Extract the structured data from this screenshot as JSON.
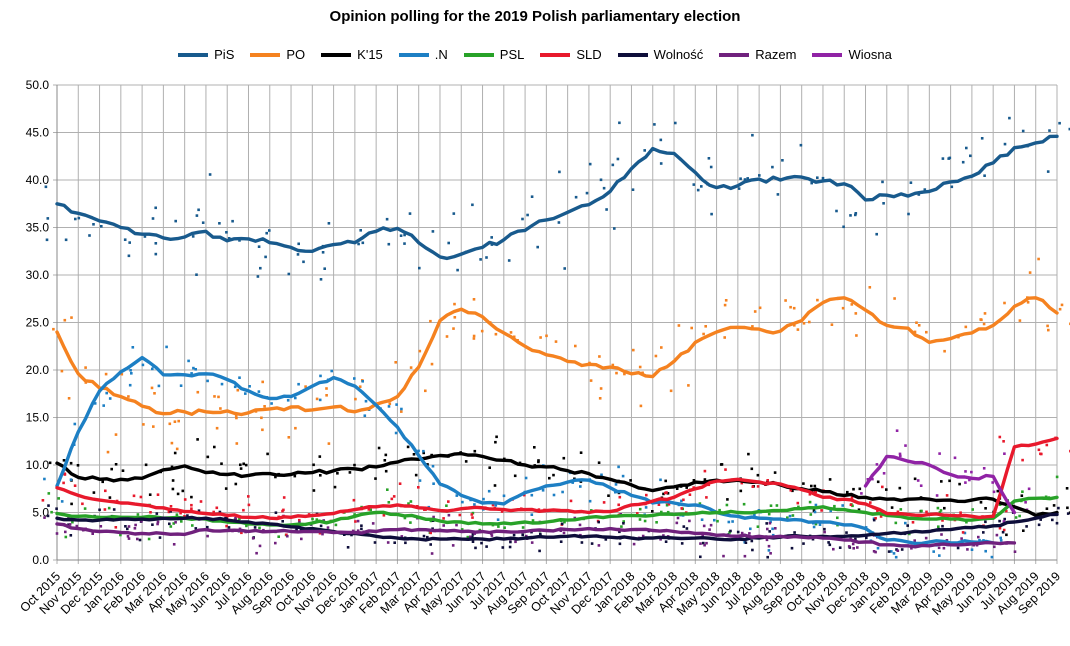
{
  "title": "Opinion polling for the 2019 Polish parliamentary election",
  "colors": {
    "grid": "#b0b0b0",
    "axis": "#888888",
    "background": "#ffffff",
    "text": "#000000"
  },
  "chart_data": {
    "type": "scatter",
    "subtype": "polling-scatter-with-trend-lines",
    "title": "Opinion polling for the 2019 Polish parliamentary election",
    "xlabel": "",
    "ylabel": "",
    "ylim": [
      0,
      50
    ],
    "y_tick_step": 5,
    "y_tick_labels": [
      "0.0",
      "5.0",
      "10.0",
      "15.0",
      "20.0",
      "25.0",
      "30.0",
      "35.0",
      "40.0",
      "45.0",
      "50.0"
    ],
    "grid": true,
    "legend_position": "top",
    "months": [
      "Oct 2015",
      "Nov 2015",
      "Dec 2015",
      "Jan 2016",
      "Feb 2016",
      "Mar 2016",
      "Apr 2016",
      "May 2016",
      "Jun 2016",
      "Jul 2016",
      "Aug 2016",
      "Sep 2016",
      "Oct 2016",
      "Nov 2016",
      "Dec 2016",
      "Jan 2017",
      "Feb 2017",
      "Mar 2017",
      "Apr 2017",
      "May 2017",
      "Jun 2017",
      "Jul 2017",
      "Aug 2017",
      "Sep 2017",
      "Oct 2017",
      "Nov 2017",
      "Dec 2017",
      "Jan 2018",
      "Feb 2018",
      "Mar 2018",
      "Apr 2018",
      "May 2018",
      "Jun 2018",
      "Jul 2018",
      "Aug 2018",
      "Sep 2018",
      "Oct 2018",
      "Nov 2018",
      "Dec 2018",
      "Jan 2019",
      "Feb 2019",
      "Mar 2019",
      "Apr 2019",
      "May 2019",
      "Jun 2019",
      "Jul 2019",
      "Aug 2019",
      "Sep 2019"
    ],
    "series": [
      {
        "name": "PiS",
        "color": "#185a8d",
        "scatter_sd": 2.3,
        "values": [
          37.5,
          36.5,
          35.7,
          35.0,
          34.3,
          33.9,
          34.0,
          34.6,
          33.6,
          33.8,
          33.4,
          32.9,
          32.5,
          33.2,
          33.4,
          34.6,
          34.9,
          33.4,
          31.9,
          32.2,
          32.9,
          33.7,
          34.7,
          35.8,
          36.6,
          37.4,
          38.8,
          41.2,
          43.3,
          42.8,
          40.8,
          39.2,
          39.4,
          40.1,
          40.0,
          40.3,
          39.9,
          39.6,
          37.9,
          38.4,
          38.3,
          38.8,
          39.8,
          40.4,
          41.8,
          43.4,
          43.9,
          44.6
        ]
      },
      {
        "name": "PO",
        "color": "#f58220",
        "scatter_sd": 2.1,
        "values": [
          24.0,
          19.6,
          18.1,
          17.2,
          16.2,
          15.4,
          15.6,
          15.6,
          15.7,
          15.5,
          15.9,
          16.1,
          15.8,
          16.1,
          15.6,
          16.4,
          17.2,
          20.3,
          25.2,
          26.4,
          25.6,
          23.9,
          22.5,
          21.6,
          20.9,
          20.6,
          20.3,
          19.6,
          19.3,
          20.9,
          22.9,
          24.0,
          24.5,
          24.3,
          24.1,
          25.2,
          27.1,
          27.6,
          26.3,
          24.7,
          24.4,
          22.9,
          23.3,
          23.9,
          24.7,
          26.7,
          27.6,
          26.0
        ]
      },
      {
        "name": "K'15",
        "color": "#000000",
        "scatter_sd": 1.4,
        "values": [
          10.2,
          8.7,
          8.5,
          8.5,
          8.6,
          9.5,
          9.9,
          9.2,
          9.0,
          8.9,
          9.1,
          9.0,
          9.2,
          9.4,
          9.6,
          9.8,
          10.3,
          10.6,
          11.0,
          11.2,
          10.9,
          10.5,
          10.0,
          9.8,
          9.4,
          9.1,
          8.5,
          7.9,
          7.3,
          7.7,
          8.2,
          8.4,
          8.4,
          8.2,
          7.9,
          7.5,
          7.2,
          6.8,
          6.6,
          6.4,
          6.4,
          6.4,
          6.3,
          6.3,
          6.4,
          5.6,
          4.7,
          5.0
        ]
      },
      {
        "name": ".N",
        "color": "#1d7fc4",
        "scatter_sd": 1.3,
        "values": [
          7.8,
          13.5,
          17.8,
          19.8,
          21.3,
          19.5,
          19.5,
          19.6,
          19.0,
          17.8,
          17.0,
          17.2,
          18.3,
          19.2,
          18.3,
          16.3,
          14.0,
          11.0,
          8.0,
          6.8,
          6.0,
          5.9,
          7.1,
          7.8,
          8.2,
          8.4,
          7.6,
          6.8,
          6.0,
          6.0,
          5.8,
          5.0,
          4.6,
          4.4,
          4.3,
          4.2,
          4.0,
          3.7,
          3.3,
          2.1,
          1.9,
          1.9,
          1.8,
          1.9,
          1.8,
          null,
          null,
          null
        ]
      },
      {
        "name": "PSL",
        "color": "#28a228",
        "scatter_sd": 1.0,
        "values": [
          4.9,
          4.6,
          4.5,
          4.5,
          4.5,
          4.4,
          4.4,
          4.3,
          4.0,
          3.8,
          3.7,
          3.7,
          3.9,
          4.1,
          4.6,
          5.0,
          4.8,
          4.5,
          4.1,
          4.0,
          3.8,
          3.9,
          4.0,
          4.0,
          4.2,
          4.5,
          4.6,
          4.7,
          4.7,
          4.8,
          4.9,
          5.0,
          5.0,
          5.1,
          5.2,
          5.4,
          5.6,
          5.3,
          5.0,
          4.7,
          4.4,
          4.3,
          4.3,
          4.2,
          4.4,
          6.2,
          6.5,
          6.6
        ]
      },
      {
        "name": "SLD",
        "color": "#e8192c",
        "scatter_sd": 1.0,
        "values": [
          7.6,
          6.8,
          6.3,
          6.0,
          5.8,
          5.5,
          5.1,
          4.9,
          4.7,
          4.5,
          4.4,
          4.5,
          4.7,
          4.9,
          5.3,
          5.6,
          5.8,
          5.5,
          5.2,
          5.4,
          5.5,
          5.3,
          5.3,
          5.2,
          5.2,
          5.0,
          5.1,
          5.8,
          6.2,
          6.6,
          7.5,
          8.3,
          8.5,
          8.2,
          8.0,
          7.4,
          6.6,
          6.4,
          5.9,
          4.9,
          4.8,
          4.8,
          4.7,
          4.6,
          4.6,
          11.9,
          12.2,
          12.8
        ]
      },
      {
        "name": "Wolność",
        "color": "#0e0e3a",
        "scatter_sd": 0.9,
        "values": [
          4.4,
          4.2,
          4.2,
          4.3,
          4.3,
          4.4,
          4.4,
          4.4,
          4.2,
          4.0,
          3.8,
          3.5,
          3.3,
          3.0,
          2.8,
          2.5,
          2.3,
          2.2,
          2.2,
          2.2,
          2.2,
          2.2,
          2.3,
          2.4,
          2.5,
          2.5,
          2.4,
          2.3,
          2.3,
          2.3,
          2.3,
          2.2,
          2.2,
          2.3,
          2.4,
          2.5,
          2.5,
          2.5,
          2.6,
          2.8,
          2.9,
          3.0,
          3.2,
          3.4,
          3.6,
          4.0,
          4.4,
          4.8
        ]
      },
      {
        "name": "Razem",
        "color": "#70217d",
        "scatter_sd": 0.9,
        "values": [
          3.8,
          3.3,
          3.0,
          2.9,
          2.8,
          2.8,
          2.7,
          3.2,
          3.1,
          3.0,
          3.0,
          3.0,
          3.0,
          2.9,
          2.9,
          3.0,
          3.2,
          3.2,
          3.1,
          3.0,
          3.0,
          3.0,
          3.0,
          3.1,
          3.2,
          3.3,
          3.3,
          3.2,
          3.1,
          3.0,
          2.8,
          2.6,
          2.5,
          2.5,
          2.5,
          2.4,
          2.3,
          2.1,
          1.9,
          1.6,
          1.5,
          1.5,
          1.6,
          1.7,
          1.8,
          1.8,
          null,
          null
        ]
      },
      {
        "name": "Wiosna",
        "color": "#9023a5",
        "scatter_sd": 1.3,
        "values": [
          null,
          null,
          null,
          null,
          null,
          null,
          null,
          null,
          null,
          null,
          null,
          null,
          null,
          null,
          null,
          null,
          null,
          null,
          null,
          null,
          null,
          null,
          null,
          null,
          null,
          null,
          null,
          null,
          null,
          null,
          null,
          null,
          null,
          null,
          null,
          null,
          null,
          null,
          7.8,
          10.9,
          10.4,
          10.0,
          9.0,
          8.6,
          8.8,
          5.0,
          null,
          null
        ]
      }
    ]
  }
}
